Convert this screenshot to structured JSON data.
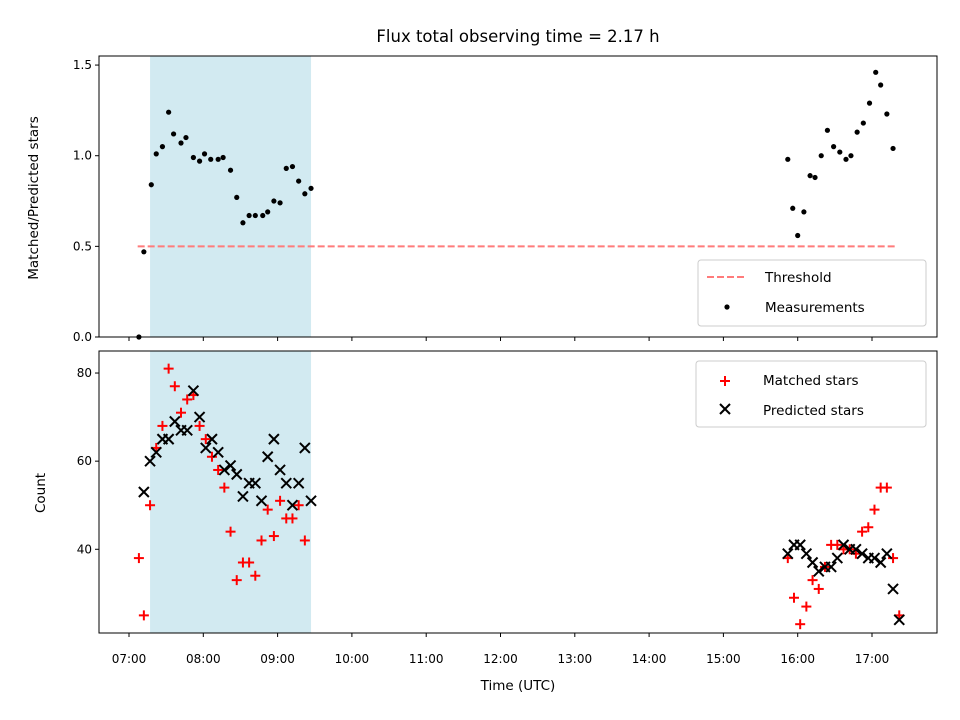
{
  "chart_data": [
    {
      "type": "scatter",
      "title": "Flux total observing time = 2.17 h",
      "xlabel": "",
      "ylabel": "Matched/Predicted stars",
      "ylim": [
        0,
        1.55
      ],
      "yticks": [
        "0.0",
        "0.5",
        "1.0",
        "1.5"
      ],
      "shaded_region": {
        "start": "07:17",
        "end": "09:27",
        "color": "#add8e6"
      },
      "legend_position": "lower right",
      "series": [
        {
          "name": "Threshold",
          "style": "dashed-line",
          "color": "#ff7b7b",
          "x": [
            "07:07",
            "17:20"
          ],
          "y": [
            0.5,
            0.5
          ]
        },
        {
          "name": "Measurements",
          "style": "dot",
          "color": "#000000",
          "x": [
            "07:08",
            "07:12",
            "07:18",
            "07:22",
            "07:27",
            "07:32",
            "07:36",
            "07:42",
            "07:46",
            "07:52",
            "07:57",
            "08:01",
            "08:06",
            "08:12",
            "08:16",
            "08:22",
            "08:27",
            "08:32",
            "08:37",
            "08:42",
            "08:48",
            "08:52",
            "08:57",
            "09:02",
            "09:07",
            "09:12",
            "09:17",
            "09:22",
            "09:27",
            "15:52",
            "15:56",
            "16:00",
            "16:05",
            "16:10",
            "16:14",
            "16:19",
            "16:24",
            "16:29",
            "16:34",
            "16:39",
            "16:43",
            "16:48",
            "16:53",
            "16:58",
            "17:03",
            "17:07",
            "17:12",
            "17:17",
            "17:22"
          ],
          "y": [
            0.0,
            0.47,
            0.84,
            1.01,
            1.05,
            1.24,
            1.12,
            1.07,
            1.1,
            0.99,
            0.97,
            1.01,
            0.98,
            0.98,
            0.99,
            0.92,
            0.77,
            0.63,
            0.67,
            0.67,
            0.67,
            0.69,
            0.75,
            0.74,
            0.93,
            0.94,
            0.86,
            0.79,
            0.82,
            0.98,
            0.71,
            0.56,
            0.69,
            0.89,
            0.88,
            1.0,
            1.14,
            1.05,
            1.02,
            0.98,
            1.0,
            1.13,
            1.18,
            1.29,
            1.46,
            1.39,
            1.23,
            1.04,
            null
          ]
        }
      ]
    },
    {
      "type": "scatter",
      "title": "",
      "xlabel": "Time (UTC)",
      "ylabel": "Count",
      "ylim": [
        21,
        85
      ],
      "yticks": [
        "40",
        "60",
        "80"
      ],
      "xticks": [
        "07:00",
        "08:00",
        "09:00",
        "10:00",
        "11:00",
        "12:00",
        "13:00",
        "14:00",
        "15:00",
        "16:00",
        "17:00"
      ],
      "shaded_region": {
        "start": "07:17",
        "end": "09:27",
        "color": "#add8e6"
      },
      "legend_position": "upper right",
      "series": [
        {
          "name": "Matched stars",
          "marker": "plus",
          "color": "#ff0000",
          "x": [
            "07:08",
            "07:12",
            "07:17",
            "07:22",
            "07:27",
            "07:32",
            "07:37",
            "07:42",
            "07:47",
            "07:52",
            "07:57",
            "08:02",
            "08:07",
            "08:12",
            "08:17",
            "08:22",
            "08:27",
            "08:32",
            "08:37",
            "08:42",
            "08:47",
            "08:52",
            "08:57",
            "09:02",
            "09:07",
            "09:12",
            "09:17",
            "09:22",
            "09:27",
            "15:52",
            "15:57",
            "16:02",
            "16:07",
            "16:12",
            "16:17",
            "16:22",
            "16:27",
            "16:32",
            "16:37",
            "16:42",
            "16:47",
            "16:52",
            "16:57",
            "17:02",
            "17:07",
            "17:12",
            "17:17",
            "17:22"
          ],
          "y": [
            38,
            25,
            50,
            63,
            68,
            81,
            77,
            71,
            74,
            75,
            68,
            65,
            61,
            58,
            54,
            44,
            33,
            37,
            37,
            34,
            42,
            49,
            43,
            51,
            47,
            47,
            50,
            42,
            null,
            38,
            29,
            23,
            27,
            33,
            31,
            36,
            41,
            41,
            40,
            40,
            39,
            44,
            45,
            49,
            54,
            54,
            38,
            25
          ]
        },
        {
          "name": "Predicted stars",
          "marker": "x",
          "color": "#000000",
          "x": [
            "07:12",
            "07:17",
            "07:22",
            "07:27",
            "07:32",
            "07:37",
            "07:42",
            "07:47",
            "07:52",
            "07:57",
            "08:02",
            "08:07",
            "08:12",
            "08:17",
            "08:22",
            "08:27",
            "08:32",
            "08:37",
            "08:42",
            "08:47",
            "08:52",
            "08:57",
            "09:02",
            "09:07",
            "09:12",
            "09:17",
            "09:22",
            "09:27",
            "15:52",
            "15:57",
            "16:02",
            "16:07",
            "16:12",
            "16:17",
            "16:22",
            "16:27",
            "16:32",
            "16:37",
            "16:42",
            "16:47",
            "16:52",
            "16:57",
            "17:02",
            "17:07",
            "17:12",
            "17:17",
            "17:22"
          ],
          "y": [
            53,
            60,
            62,
            65,
            65,
            69,
            67,
            67,
            76,
            70,
            63,
            65,
            62,
            58,
            59,
            57,
            52,
            55,
            55,
            51,
            61,
            65,
            58,
            55,
            50,
            55,
            63,
            51,
            39,
            41,
            41,
            39,
            37,
            35,
            36,
            36,
            38,
            41,
            40,
            40,
            39,
            38,
            38,
            37,
            39,
            31,
            24
          ]
        }
      ]
    }
  ]
}
